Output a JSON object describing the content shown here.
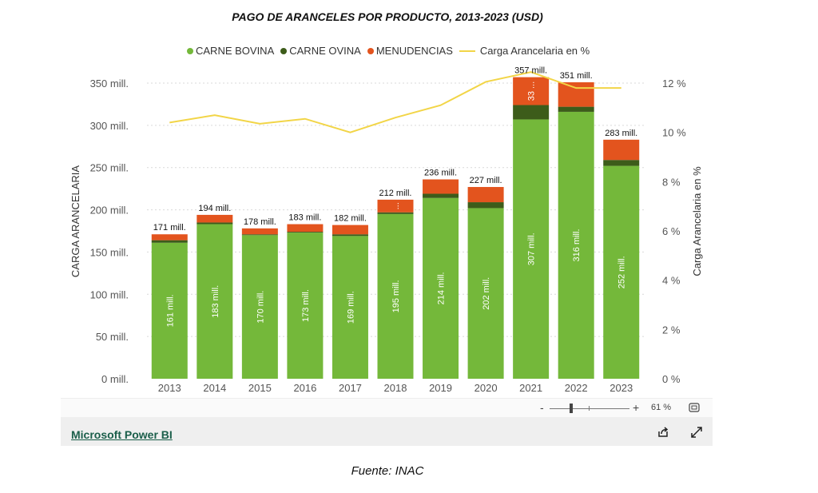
{
  "colors": {
    "bovina": "#74b83a",
    "ovina": "#3d5c1a",
    "menudencias": "#e3541e",
    "line": "#f2d547",
    "grid": "#d9d9d9",
    "axis_text": "#555555"
  },
  "footer": {
    "link": "Microsoft Power BI",
    "share_icon": "share-icon",
    "expand_icon": "expand-icon"
  },
  "zoom": {
    "minus": "-",
    "plus": "+",
    "value": "61 %",
    "level_percent": 61,
    "fit_icon": "fit-to-page-icon"
  },
  "source": "Fuente: INAC",
  "chart_data": {
    "type": "bar",
    "stacked": true,
    "title": "PAGO DE ARANCELES POR PRODUCTO, 2013-2023 (USD)",
    "ylabel": "CARGA ARANCELARIA",
    "y2label": "Carga Arancelaria en %",
    "ylim": [
      0,
      350
    ],
    "y2lim": [
      0,
      12
    ],
    "yticks": [
      0,
      50,
      100,
      150,
      200,
      250,
      300,
      350
    ],
    "y2ticks": [
      0,
      2,
      4,
      6,
      8,
      10,
      12
    ],
    "ytick_labels": [
      "0 mill.",
      "50 mill.",
      "100 mill.",
      "150 mill.",
      "200 mill.",
      "250 mill.",
      "300 mill.",
      "350 mill."
    ],
    "y2tick_labels": [
      "0 %",
      "2 %",
      "4 %",
      "6 %",
      "8 %",
      "10 %",
      "12 %"
    ],
    "legend_position": "top",
    "grid": true,
    "categories": [
      "2013",
      "2014",
      "2015",
      "2016",
      "2017",
      "2018",
      "2019",
      "2020",
      "2021",
      "2022",
      "2023"
    ],
    "series": [
      {
        "name": "CARNE BOVINA",
        "values": [
          161,
          183,
          170,
          173,
          169,
          195,
          214,
          202,
          307,
          316,
          252
        ],
        "labels": [
          "161 mill.",
          "183 mill.",
          "170 mill.",
          "173 mill.",
          "169 mill.",
          "195 mill.",
          "214 mill.",
          "202 mill.",
          "307 mill.",
          "316 mill.",
          "252 mill."
        ]
      },
      {
        "name": "CARNE OVINA",
        "values": [
          3,
          2,
          1,
          1,
          2,
          2,
          5,
          7,
          17,
          6,
          7
        ]
      },
      {
        "name": "MENUDENCIAS",
        "values": [
          7,
          9,
          7,
          9,
          11,
          15,
          17,
          18,
          33,
          29,
          24
        ],
        "labels": [
          "",
          "",
          "",
          "",
          "",
          "...",
          "",
          "",
          "33 ...",
          "",
          ""
        ]
      },
      {
        "name": "Carga Arancelaria en %",
        "type": "line",
        "axis": "right",
        "values": [
          10.4,
          10.7,
          10.35,
          10.55,
          10.0,
          10.6,
          11.1,
          12.05,
          12.45,
          11.8,
          11.8
        ]
      }
    ],
    "totals": [
      171,
      194,
      178,
      183,
      182,
      212,
      236,
      227,
      357,
      351,
      283
    ],
    "total_labels": [
      "171 mill.",
      "194 mill.",
      "178 mill.",
      "183 mill.",
      "182 mill.",
      "212 mill.",
      "236 mill.",
      "227 mill.",
      "357 mill.",
      "351 mill.",
      "283 mill."
    ]
  }
}
